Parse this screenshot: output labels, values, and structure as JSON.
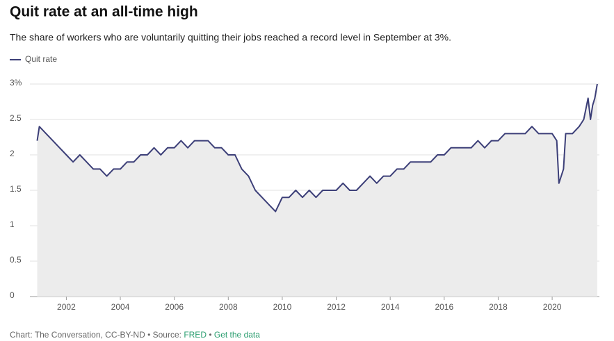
{
  "chart_data": {
    "type": "line",
    "title": "Quit rate at an all-time high",
    "subtitle": "The share of workers who are voluntarily quitting their jobs reached a record level in September at 3%.",
    "footer": {
      "credit": "Chart: The Conversation, CC-BY-ND • Source:",
      "source": "FRED",
      "separator": "•",
      "link": "Get the data"
    },
    "legend": "top-left",
    "grid": true,
    "area_color": "#ececec",
    "x": [
      2000.92,
      2001.0,
      2001.25,
      2001.5,
      2001.75,
      2002.0,
      2002.25,
      2002.5,
      2002.75,
      2003.0,
      2003.25,
      2003.5,
      2003.75,
      2004.0,
      2004.25,
      2004.5,
      2004.75,
      2005.0,
      2005.25,
      2005.5,
      2005.75,
      2006.0,
      2006.25,
      2006.5,
      2006.75,
      2007.0,
      2007.25,
      2007.5,
      2007.75,
      2008.0,
      2008.25,
      2008.5,
      2008.75,
      2009.0,
      2009.25,
      2009.5,
      2009.75,
      2010.0,
      2010.25,
      2010.5,
      2010.75,
      2011.0,
      2011.25,
      2011.5,
      2011.75,
      2012.0,
      2012.25,
      2012.5,
      2012.75,
      2013.0,
      2013.25,
      2013.5,
      2013.75,
      2014.0,
      2014.25,
      2014.5,
      2014.75,
      2015.0,
      2015.25,
      2015.5,
      2015.75,
      2016.0,
      2016.25,
      2016.5,
      2016.75,
      2017.0,
      2017.25,
      2017.5,
      2017.75,
      2018.0,
      2018.25,
      2018.5,
      2018.75,
      2019.0,
      2019.25,
      2019.5,
      2019.75,
      2020.0,
      2020.17,
      2020.25,
      2020.42,
      2020.5,
      2020.75,
      2021.0,
      2021.17,
      2021.33,
      2021.42,
      2021.5,
      2021.58,
      2021.67
    ],
    "series": [
      {
        "name": "Quit rate",
        "color": "#3c3f78",
        "values": [
          2.2,
          2.4,
          2.3,
          2.2,
          2.1,
          2.0,
          1.9,
          2.0,
          1.9,
          1.8,
          1.8,
          1.7,
          1.8,
          1.8,
          1.9,
          1.9,
          2.0,
          2.0,
          2.1,
          2.0,
          2.1,
          2.1,
          2.2,
          2.1,
          2.2,
          2.2,
          2.2,
          2.1,
          2.1,
          2.0,
          2.0,
          1.8,
          1.7,
          1.5,
          1.4,
          1.3,
          1.2,
          1.4,
          1.4,
          1.5,
          1.4,
          1.5,
          1.4,
          1.5,
          1.5,
          1.5,
          1.6,
          1.5,
          1.5,
          1.6,
          1.7,
          1.6,
          1.7,
          1.7,
          1.8,
          1.8,
          1.9,
          1.9,
          1.9,
          1.9,
          2.0,
          2.0,
          2.1,
          2.1,
          2.1,
          2.1,
          2.2,
          2.1,
          2.2,
          2.2,
          2.3,
          2.3,
          2.3,
          2.3,
          2.4,
          2.3,
          2.3,
          2.3,
          2.2,
          1.6,
          1.8,
          2.3,
          2.3,
          2.4,
          2.5,
          2.8,
          2.5,
          2.7,
          2.8,
          3.0
        ]
      }
    ],
    "xlim": [
      2000.65,
      2021.75
    ],
    "xticks": [
      2002,
      2004,
      2006,
      2008,
      2010,
      2012,
      2014,
      2016,
      2018,
      2020
    ],
    "ylim": [
      0,
      3
    ],
    "yticks": [
      0,
      0.5,
      1,
      1.5,
      2,
      2.5,
      {
        "value": 3,
        "label": "3%"
      }
    ]
  }
}
